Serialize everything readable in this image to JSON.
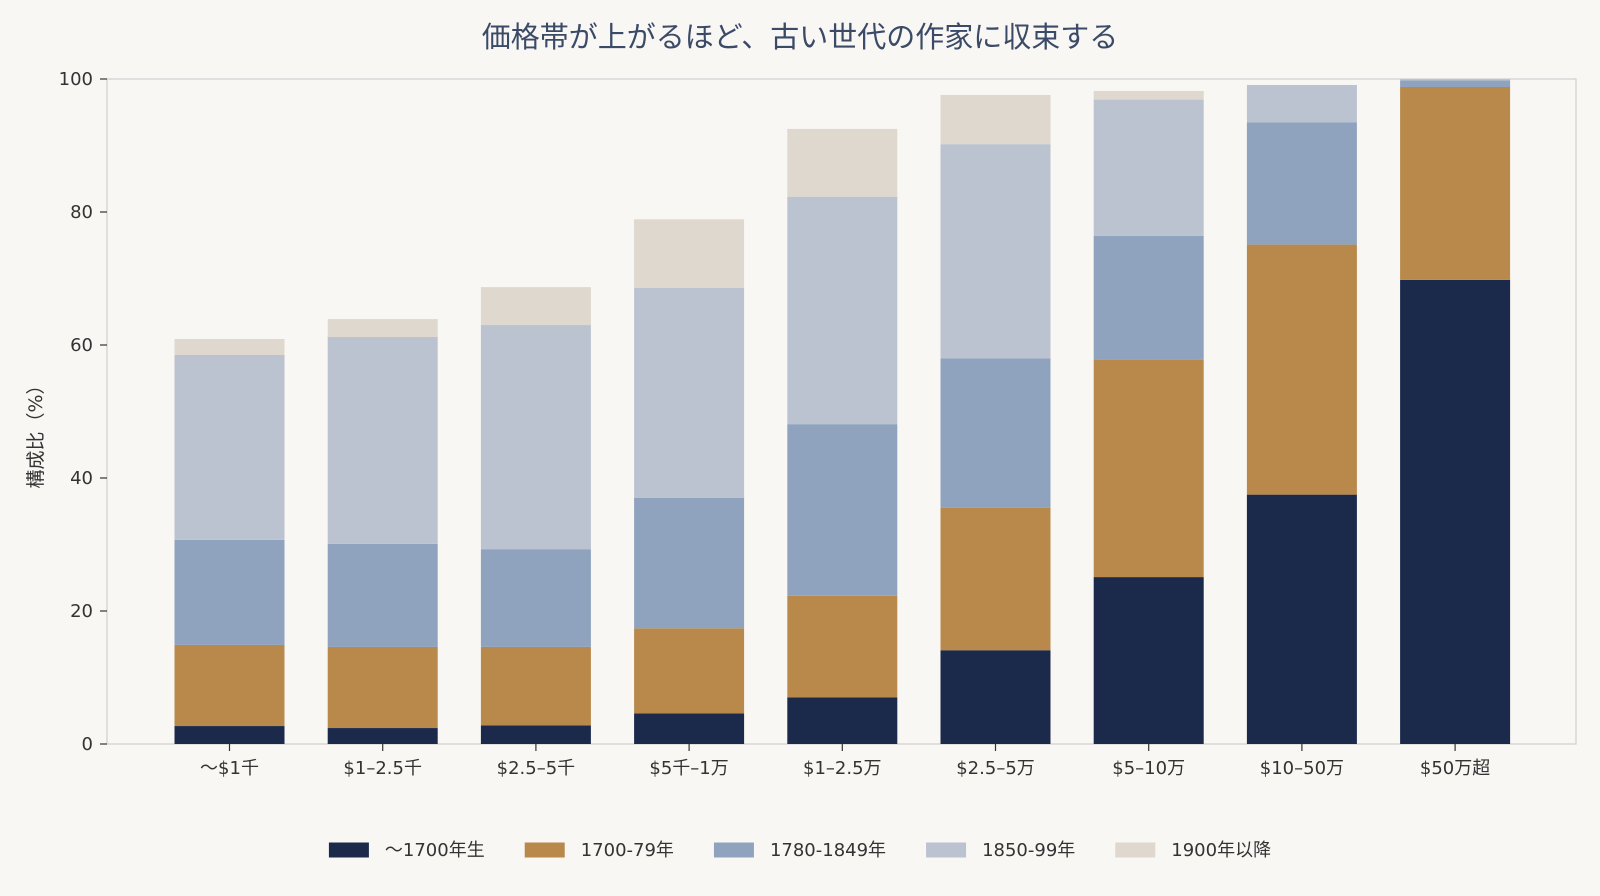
{
  "chart_data": {
    "type": "bar",
    "stacked": true,
    "title": "価格帯が上がるほど、古い世代の作家に収束する",
    "xlabel": "",
    "ylabel": "構成比（%）",
    "ylim": [
      0,
      100
    ],
    "yticks": [
      0,
      20,
      40,
      60,
      80,
      100
    ],
    "grid": false,
    "legend_position": "bottom",
    "categories": [
      "〜$1千",
      "$1–2.5千",
      "$2.5–5千",
      "$5千–1万",
      "$1–2.5万",
      "$2.5–5万",
      "$5–10万",
      "$10–50万",
      "$50万超"
    ],
    "series": [
      {
        "name": "〜1700年生",
        "color": "#1b294b",
        "values": [
          2.7,
          2.4,
          2.8,
          4.6,
          7.0,
          14.1,
          25.1,
          37.5,
          69.8
        ]
      },
      {
        "name": "1700-79年",
        "color": "#b8894b",
        "values": [
          12.2,
          12.2,
          11.8,
          12.8,
          15.3,
          21.4,
          32.7,
          37.6,
          29.0
        ]
      },
      {
        "name": "1780-1849年",
        "color": "#8fa3bf",
        "values": [
          15.8,
          15.5,
          14.7,
          19.6,
          25.8,
          22.5,
          18.6,
          18.4,
          1.0
        ]
      },
      {
        "name": "1850-99年",
        "color": "#bbc2d0",
        "values": [
          27.8,
          31.1,
          33.7,
          31.6,
          34.2,
          32.2,
          20.5,
          5.6,
          0.2
        ]
      },
      {
        "name": "1900年以降",
        "color": "#ded8ce",
        "values": [
          2.4,
          2.7,
          5.7,
          10.3,
          10.2,
          7.4,
          1.3,
          0.0,
          0.0
        ]
      }
    ]
  }
}
